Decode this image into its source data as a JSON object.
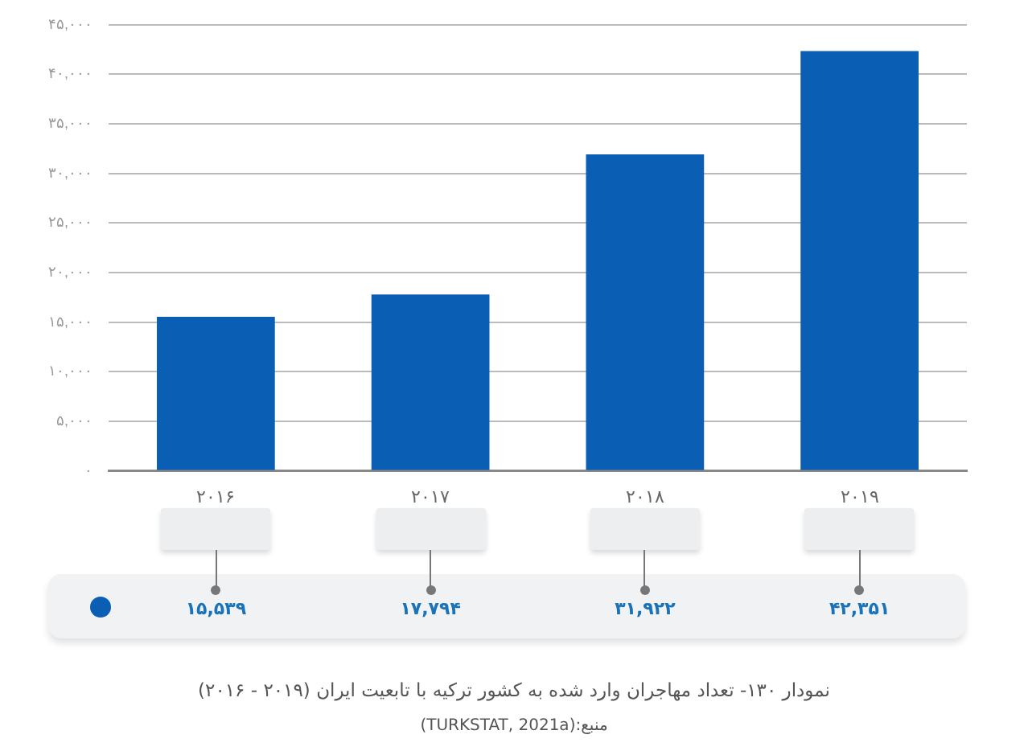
{
  "chart_data": {
    "type": "bar",
    "title": "نمودار ۱۳۰- تعداد مهاجران وارد شده به کشور ترکیه با تابعیت ایران (۲۰۱۹ - ۲۰۱۶)",
    "annotations": [
      "منبع:(TURKSTAT, 2021a)"
    ],
    "categories": [
      "۲۰۱۶",
      "۲۰۱۷",
      "۲۰۱۸",
      "۲۰۱۹"
    ],
    "values": [
      15539,
      17794,
      31922,
      42351
    ],
    "value_labels": [
      "۱۵,۵۳۹",
      "۱۷,۷۹۴",
      "۳۱,۹۲۲",
      "۴۲,۳۵۱"
    ],
    "color": "#0a5fb4",
    "ylim": [
      0,
      45000
    ],
    "yticks": [
      {
        "value": 0,
        "label": "۰"
      },
      {
        "value": 5000,
        "label": "۵,۰۰۰"
      },
      {
        "value": 10000,
        "label": "۱۰,۰۰۰"
      },
      {
        "value": 15000,
        "label": "۱۵,۰۰۰"
      },
      {
        "value": 20000,
        "label": "۲۰,۰۰۰"
      },
      {
        "value": 25000,
        "label": "۲۵,۰۰۰"
      },
      {
        "value": 30000,
        "label": "۳۰,۰۰۰"
      },
      {
        "value": 35000,
        "label": "۳۵,۰۰۰"
      },
      {
        "value": 40000,
        "label": "۴۰,۰۰۰"
      },
      {
        "value": 45000,
        "label": "۴۵,۰۰۰"
      }
    ],
    "grid": "y",
    "legend": false
  }
}
